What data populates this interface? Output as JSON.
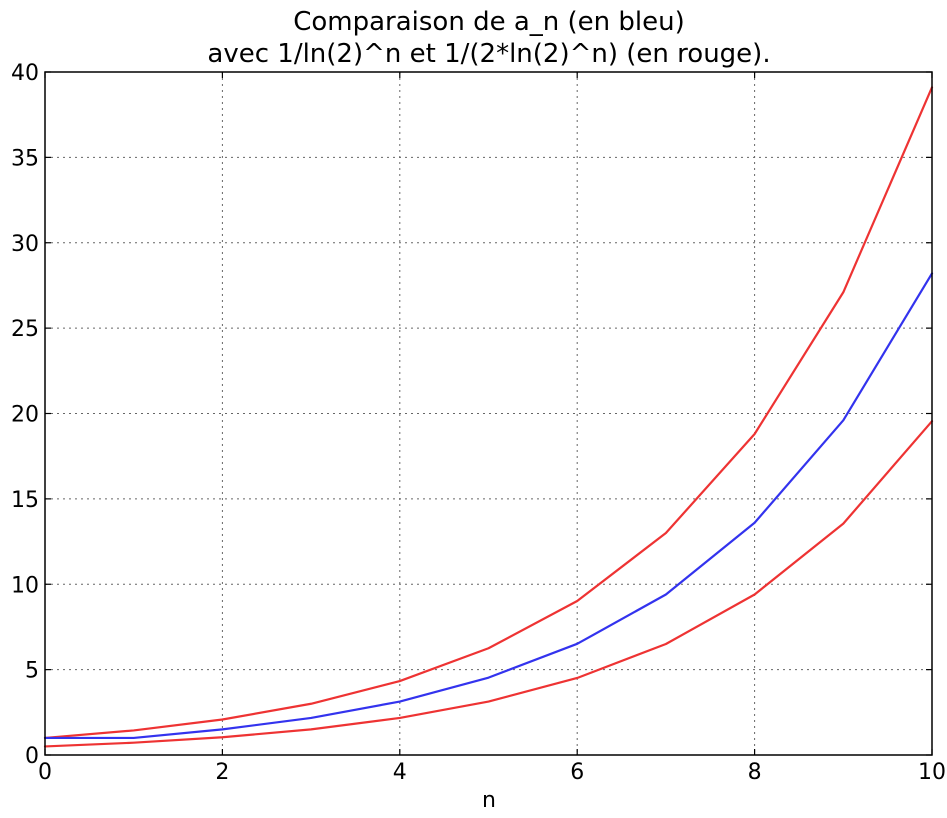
{
  "chart_data": {
    "type": "line",
    "title": "Comparaison de a_n (en bleu)",
    "subtitle": "avec 1/ln(2)^n et 1/(2*ln(2)^n) (en rouge).",
    "xlabel": "n",
    "ylabel": "",
    "xlim": [
      0,
      10
    ],
    "ylim": [
      0,
      40
    ],
    "xticks": [
      0,
      2,
      4,
      6,
      8,
      10
    ],
    "yticks": [
      0,
      5,
      10,
      15,
      20,
      25,
      30,
      35,
      40
    ],
    "grid": true,
    "x": [
      0,
      1,
      2,
      3,
      4,
      5,
      6,
      7,
      8,
      9,
      10
    ],
    "series": [
      {
        "color": "#ee3333",
        "values": [
          1.0,
          1.44,
          2.08,
          3.0,
          4.33,
          6.25,
          9.02,
          13.0,
          18.8,
          27.1,
          39.1
        ]
      },
      {
        "color": "#3333ee",
        "values": [
          1.0,
          1.0,
          1.5,
          2.17,
          3.13,
          4.53,
          6.51,
          9.4,
          13.6,
          19.6,
          28.2
        ]
      },
      {
        "color": "#ee3333",
        "values": [
          0.5,
          0.72,
          1.04,
          1.5,
          2.17,
          3.13,
          4.51,
          6.5,
          9.4,
          13.55,
          19.55
        ]
      }
    ]
  }
}
